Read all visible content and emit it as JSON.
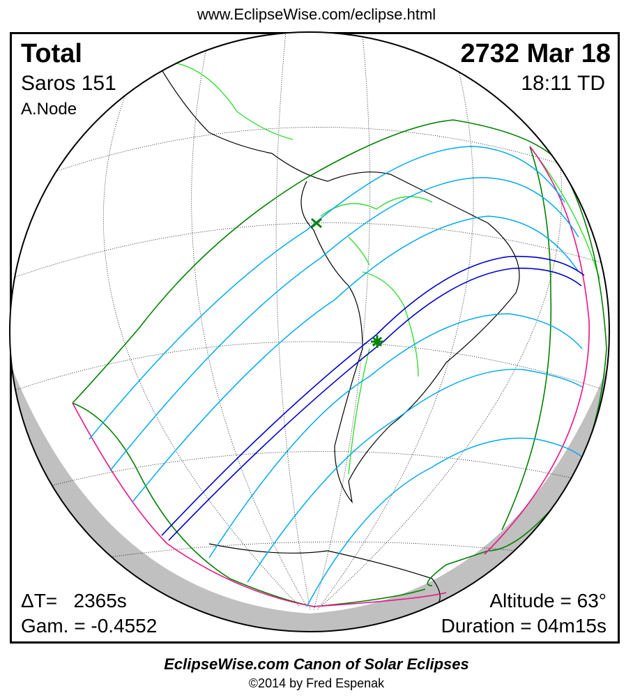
{
  "header": {
    "url": "www.EclipseWise.com/eclipse.html"
  },
  "info": {
    "type": "Total",
    "date": "2732 Mar 18",
    "saros": "Saros 151",
    "time": "18:11 TD",
    "node": "A.Node",
    "delta_t": "ΔT=   2365s",
    "gamma": "Gam. = -0.4552",
    "altitude": "Altitude = 63°",
    "duration": "Duration = 04m15s"
  },
  "footer": {
    "canon": "EclipseWise.com Canon of Solar Eclipses",
    "copyright": "©2014 by Fred Espenak"
  },
  "colors": {
    "penumbral_limits": "#008000",
    "partial_lines": "#00aaee",
    "central_path": "#0000cc",
    "rise_set": "#ee1188",
    "coastlines": "#000000",
    "borders": "#33dd33",
    "night": "#c0c0c0"
  }
}
